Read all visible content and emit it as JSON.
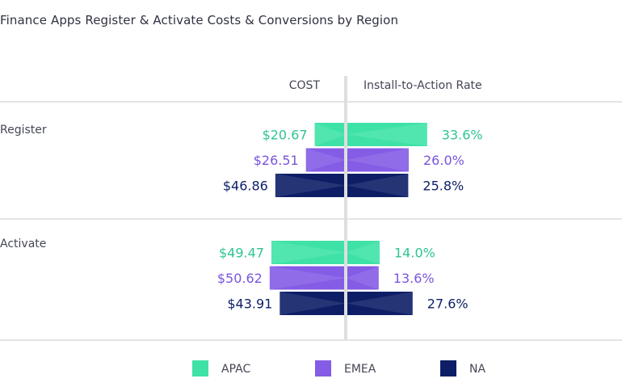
{
  "chart_data": {
    "type": "bar",
    "title": "Finance Apps Register & Activate Costs & Conversions by Region",
    "left_axis_label": "COST",
    "right_axis_label": "Install-to-Action Rate",
    "categories": [
      "Register",
      "Activate"
    ],
    "series": [
      {
        "name": "APAC",
        "color": "#3ee2a6",
        "label_color": "#2ec58f",
        "cost": [
          20.67,
          49.47
        ],
        "cost_labels": [
          "$20.67",
          "$49.47"
        ],
        "rate": [
          33.6,
          14.0
        ],
        "rate_labels": [
          "33.6%",
          "14.0%"
        ]
      },
      {
        "name": "EMEA",
        "color": "#845ce6",
        "label_color": "#7b55dc",
        "cost": [
          26.51,
          50.62
        ],
        "cost_labels": [
          "$26.51",
          "$50.62"
        ],
        "rate": [
          26.0,
          13.6
        ],
        "rate_labels": [
          "26.0%",
          "13.6%"
        ]
      },
      {
        "name": "NA",
        "color": "#0d1e66",
        "label_color": "#0d1e66",
        "cost": [
          46.86,
          43.91
        ],
        "cost_labels": [
          "$46.86",
          "$43.91"
        ],
        "rate": [
          25.8,
          27.6
        ],
        "rate_labels": [
          "25.8%",
          "27.6%"
        ]
      }
    ],
    "legend": [
      "APAC",
      "EMEA",
      "NA"
    ],
    "legend_position": "bottom"
  }
}
